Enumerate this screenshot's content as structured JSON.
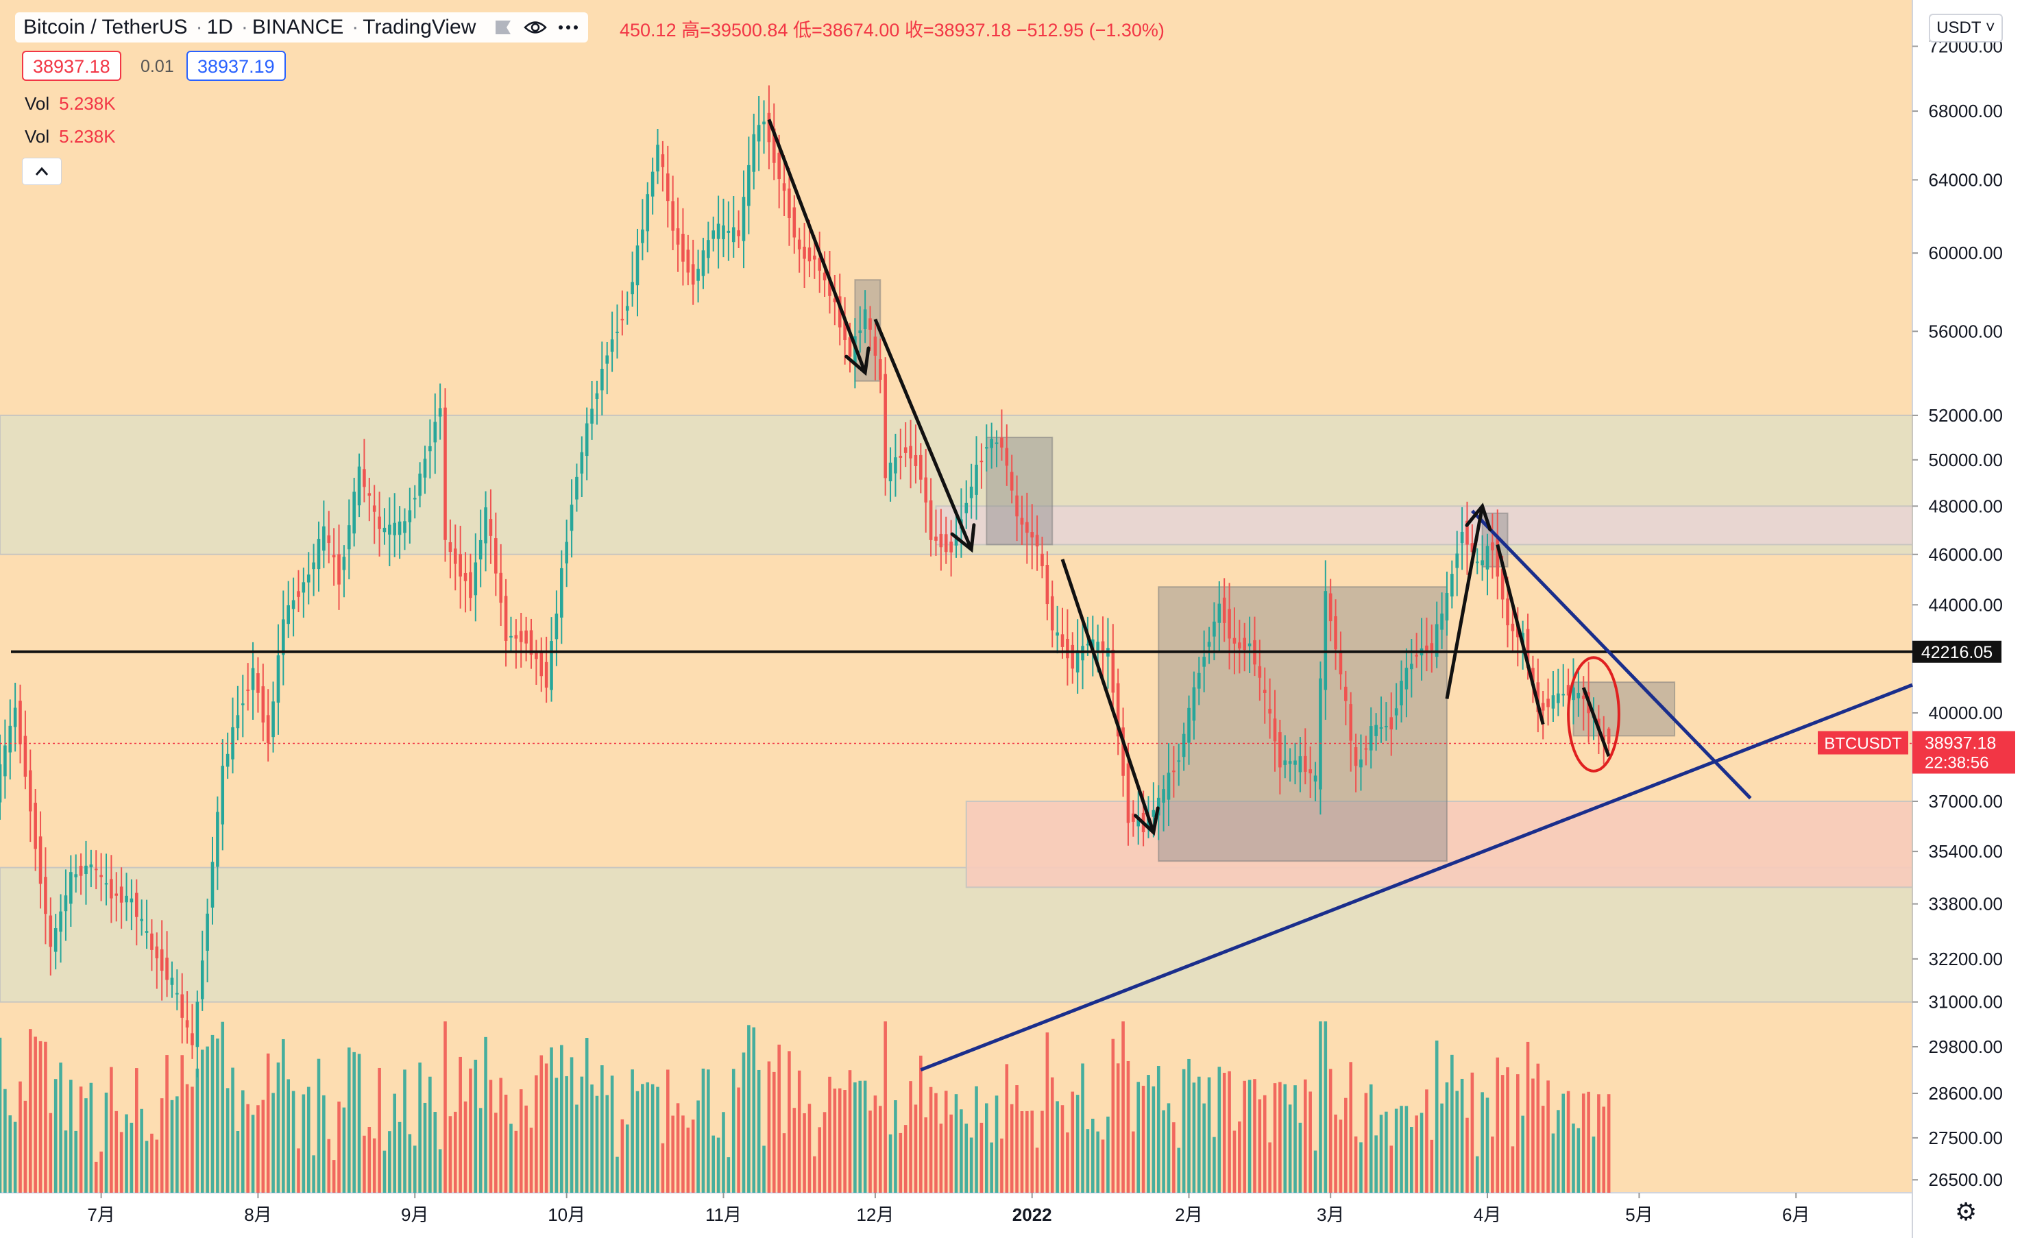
{
  "header": {
    "symbol": "Bitcoin / TetherUS",
    "interval": "1D",
    "exchange": "BINANCE",
    "source": "TradingView",
    "ohlc_text": "450.12  高=39500.84  低=38674.00  收=38937.18  −512.95 (−1.30%)"
  },
  "quote": {
    "bid": "38937.18",
    "spread": "0.01",
    "ask": "38937.19"
  },
  "volume_rows": [
    {
      "label": "Vol",
      "value": "5.238K"
    },
    {
      "label": "Vol",
      "value": "5.238K"
    }
  ],
  "currency_label": "USDT",
  "icons": {
    "collapse": "chevron-up-icon",
    "settings": "gear-icon",
    "eye": "eye-icon",
    "more": "more-icon",
    "flag": "flag-icon"
  },
  "colors": {
    "background": "#FDDDB1",
    "up": "#26A69A",
    "down": "#EF5350",
    "zone_green": "#E3DFC2",
    "zone_pink": "#E8D5D3",
    "zone_red": "#F7CBBB",
    "box_gray": "#8C8C8C",
    "trendline": "#1A2E8C",
    "horizontal_line": "#111111",
    "ellipse": "#E02020",
    "last_price": "#F23645"
  },
  "chart_data": {
    "type": "candlestick",
    "symbol": "BTCUSDT",
    "x_tick_labels": [
      "7月",
      "8月",
      "9月",
      "10月",
      "11月",
      "12月",
      "2022",
      "2月",
      "3月",
      "4月",
      "5月",
      "6月"
    ],
    "x_ticks": [
      "2021-07-01",
      "2021-08-01",
      "2021-09-01",
      "2021-10-01",
      "2021-11-01",
      "2021-12-01",
      "2022-01-01",
      "2022-02-01",
      "2022-03-01",
      "2022-04-01",
      "2022-05-01",
      "2022-06-01"
    ],
    "xlim": [
      "2021-06-11",
      "2022-06-24"
    ],
    "y_scale": "log",
    "y_tick_labels": [
      "72000.00",
      "68000.00",
      "64000.00",
      "60000.00",
      "56000.00",
      "52000.00",
      "50000.00",
      "48000.00",
      "46000.00",
      "44000.00",
      "40000.00",
      "37000.00",
      "35400.00",
      "33800.00",
      "32200.00",
      "31000.00",
      "29800.00",
      "28600.00",
      "27500.00",
      "26500.00"
    ],
    "ylim": [
      26200,
      75000
    ],
    "last_price": {
      "value": 38937.18,
      "label": "BTCUSDT",
      "price_text": "38937.18",
      "countdown": "22:38:56"
    },
    "horizontal_line": {
      "value": 42216.05,
      "label": "42216.05"
    },
    "price_path": [
      [
        "2021-06-11",
        37300
      ],
      [
        "2021-06-15",
        40200
      ],
      [
        "2021-06-19",
        35600
      ],
      [
        "2021-06-22",
        32500
      ],
      [
        "2021-06-26",
        34600
      ],
      [
        "2021-06-30",
        35000
      ],
      [
        "2021-07-04",
        34100
      ],
      [
        "2021-07-08",
        33900
      ],
      [
        "2021-07-12",
        32500
      ],
      [
        "2021-07-16",
        31500
      ],
      [
        "2021-07-20",
        29800
      ],
      [
        "2021-07-22",
        32200
      ],
      [
        "2021-07-26",
        38000
      ],
      [
        "2021-07-29",
        40000
      ],
      [
        "2021-08-01",
        41500
      ],
      [
        "2021-08-04",
        39000
      ],
      [
        "2021-08-07",
        43500
      ],
      [
        "2021-08-12",
        45200
      ],
      [
        "2021-08-15",
        47000
      ],
      [
        "2021-08-18",
        45000
      ],
      [
        "2021-08-22",
        49500
      ],
      [
        "2021-08-26",
        47000
      ],
      [
        "2021-08-31",
        47200
      ],
      [
        "2021-09-04",
        50000
      ],
      [
        "2021-09-07",
        52500
      ],
      [
        "2021-09-08",
        46500
      ],
      [
        "2021-09-13",
        44500
      ],
      [
        "2021-09-16",
        47800
      ],
      [
        "2021-09-20",
        42800
      ],
      [
        "2021-09-24",
        42700
      ],
      [
        "2021-09-28",
        41100
      ],
      [
        "2021-09-30",
        43800
      ],
      [
        "2021-10-03",
        48200
      ],
      [
        "2021-10-06",
        51500
      ],
      [
        "2021-10-10",
        55000
      ],
      [
        "2021-10-14",
        57400
      ],
      [
        "2021-10-17",
        61500
      ],
      [
        "2021-10-20",
        66000
      ],
      [
        "2021-10-23",
        61200
      ],
      [
        "2021-10-27",
        58500
      ],
      [
        "2021-10-31",
        61300
      ],
      [
        "2021-11-05",
        61000
      ],
      [
        "2021-11-08",
        66500
      ],
      [
        "2021-11-10",
        67500
      ],
      [
        "2021-11-13",
        64200
      ],
      [
        "2021-11-17",
        60000
      ],
      [
        "2021-11-20",
        59700
      ],
      [
        "2021-11-24",
        57300
      ],
      [
        "2021-11-27",
        54800
      ],
      [
        "2021-11-30",
        57000
      ],
      [
        "2021-12-03",
        53600
      ],
      [
        "2021-12-04",
        49400
      ],
      [
        "2021-12-08",
        50500
      ],
      [
        "2021-12-11",
        49400
      ],
      [
        "2021-12-13",
        46700
      ],
      [
        "2021-12-17",
        46200
      ],
      [
        "2021-12-21",
        48900
      ],
      [
        "2021-12-24",
        50800
      ],
      [
        "2021-12-27",
        50700
      ],
      [
        "2021-12-30",
        47500
      ],
      [
        "2022-01-03",
        46400
      ],
      [
        "2022-01-06",
        43100
      ],
      [
        "2022-01-10",
        41800
      ],
      [
        "2022-01-13",
        42600
      ],
      [
        "2022-01-17",
        42200
      ],
      [
        "2022-01-21",
        36500
      ],
      [
        "2022-01-24",
        36200
      ],
      [
        "2022-01-27",
        37000
      ],
      [
        "2022-01-31",
        38500
      ],
      [
        "2022-02-04",
        41500
      ],
      [
        "2022-02-08",
        44000
      ],
      [
        "2022-02-11",
        42400
      ],
      [
        "2022-02-14",
        42500
      ],
      [
        "2022-02-17",
        40500
      ],
      [
        "2022-02-20",
        38300
      ],
      [
        "2022-02-24",
        38300
      ],
      [
        "2022-02-27",
        37700
      ],
      [
        "2022-03-01",
        44400
      ],
      [
        "2022-03-03",
        42400
      ],
      [
        "2022-03-07",
        38000
      ],
      [
        "2022-03-10",
        39400
      ],
      [
        "2022-03-14",
        39600
      ],
      [
        "2022-03-16",
        41100
      ],
      [
        "2022-03-19",
        42200
      ],
      [
        "2022-03-22",
        42400
      ],
      [
        "2022-03-25",
        44300
      ],
      [
        "2022-03-28",
        47100
      ],
      [
        "2022-03-31",
        45500
      ],
      [
        "2022-04-03",
        46400
      ],
      [
        "2022-04-06",
        43200
      ],
      [
        "2022-04-09",
        42700
      ],
      [
        "2022-04-12",
        40100
      ],
      [
        "2022-04-15",
        40500
      ],
      [
        "2022-04-18",
        40800
      ],
      [
        "2022-04-21",
        40500
      ],
      [
        "2022-04-24",
        39400
      ],
      [
        "2022-04-25",
        38937.18
      ]
    ],
    "zones": [
      {
        "from": "2021-06-11",
        "to": "2022-06-24",
        "low": 46000,
        "high": 52000,
        "color": "zone_green"
      },
      {
        "from": "2021-06-11",
        "to": "2022-06-24",
        "low": 31000,
        "high": 34900,
        "color": "zone_green"
      },
      {
        "from": "2021-12-13",
        "to": "2022-06-24",
        "low": 46400,
        "high": 48000,
        "color": "zone_pink"
      },
      {
        "from": "2021-12-19",
        "to": "2022-06-24",
        "low": 34300,
        "high": 37000,
        "color": "zone_red"
      }
    ],
    "boxes": [
      {
        "from": "2021-11-27",
        "to": "2021-12-02",
        "low": 53600,
        "high": 58600
      },
      {
        "from": "2021-12-23",
        "to": "2022-01-05",
        "low": 46400,
        "high": 51000
      },
      {
        "from": "2022-01-26",
        "to": "2022-03-24",
        "low": 35100,
        "high": 44700
      },
      {
        "from": "2022-03-31",
        "to": "2022-04-05",
        "low": 45500,
        "high": 47700
      },
      {
        "from": "2022-04-18",
        "to": "2022-05-08",
        "low": 39200,
        "high": 41100
      }
    ],
    "trendlines": [
      {
        "color": "trendline",
        "points": [
          [
            "2021-12-10",
            29200
          ],
          [
            "2022-06-24",
            41000
          ]
        ]
      },
      {
        "color": "trendline",
        "points": [
          [
            "2022-03-29",
            47800
          ],
          [
            "2022-05-23",
            37100
          ]
        ]
      }
    ],
    "arrows": [
      {
        "points": [
          [
            "2021-11-10",
            67500
          ],
          [
            "2021-11-29",
            54000
          ]
        ],
        "head": "end"
      },
      {
        "points": [
          [
            "2021-12-01",
            56600
          ],
          [
            "2021-12-20",
            46200
          ]
        ],
        "head": "end"
      },
      {
        "points": [
          [
            "2022-01-07",
            45800
          ],
          [
            "2022-01-25",
            36000
          ]
        ],
        "head": "end"
      },
      {
        "points": [
          [
            "2022-03-24",
            40500
          ],
          [
            "2022-03-31",
            48000
          ]
        ],
        "head": "end"
      },
      {
        "points": [
          [
            "2022-04-03",
            46400
          ],
          [
            "2022-04-12",
            39600
          ]
        ],
        "head": "none"
      },
      {
        "points": [
          [
            "2022-04-20",
            40900
          ],
          [
            "2022-04-25",
            38500
          ]
        ],
        "head": "none"
      }
    ],
    "ellipse": {
      "center": [
        "2022-04-22",
        39700
      ],
      "rx_days": 5,
      "low": 38000,
      "high": 42000
    },
    "volume": {
      "max_label": "approx"
    }
  }
}
